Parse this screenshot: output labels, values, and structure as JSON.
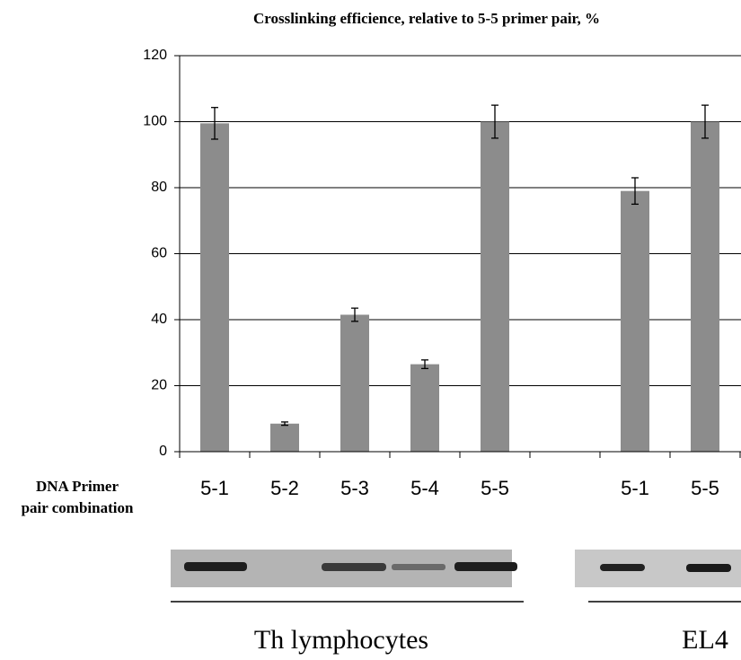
{
  "chart_data": {
    "type": "bar",
    "title": "Crosslinking efficience, relative to 5-5 primer pair, %",
    "xlabel": [
      "DNA Primer",
      "pair combination"
    ],
    "categories": [
      "5-1",
      "5-2",
      "5-3",
      "5-4",
      "5-5",
      null,
      "5-1",
      "5-5"
    ],
    "values": [
      99.5,
      8.5,
      41.5,
      26.5,
      100,
      null,
      79,
      100
    ],
    "errors": [
      4.8,
      0.5,
      2,
      1.3,
      5,
      null,
      4,
      5
    ],
    "color": "#8c8c8c",
    "ylim": [
      0,
      120
    ],
    "yticks": [
      0,
      20,
      40,
      60,
      80,
      100,
      120
    ],
    "grid": true,
    "groups": [
      "Th lymphocytes",
      "EL4"
    ]
  }
}
